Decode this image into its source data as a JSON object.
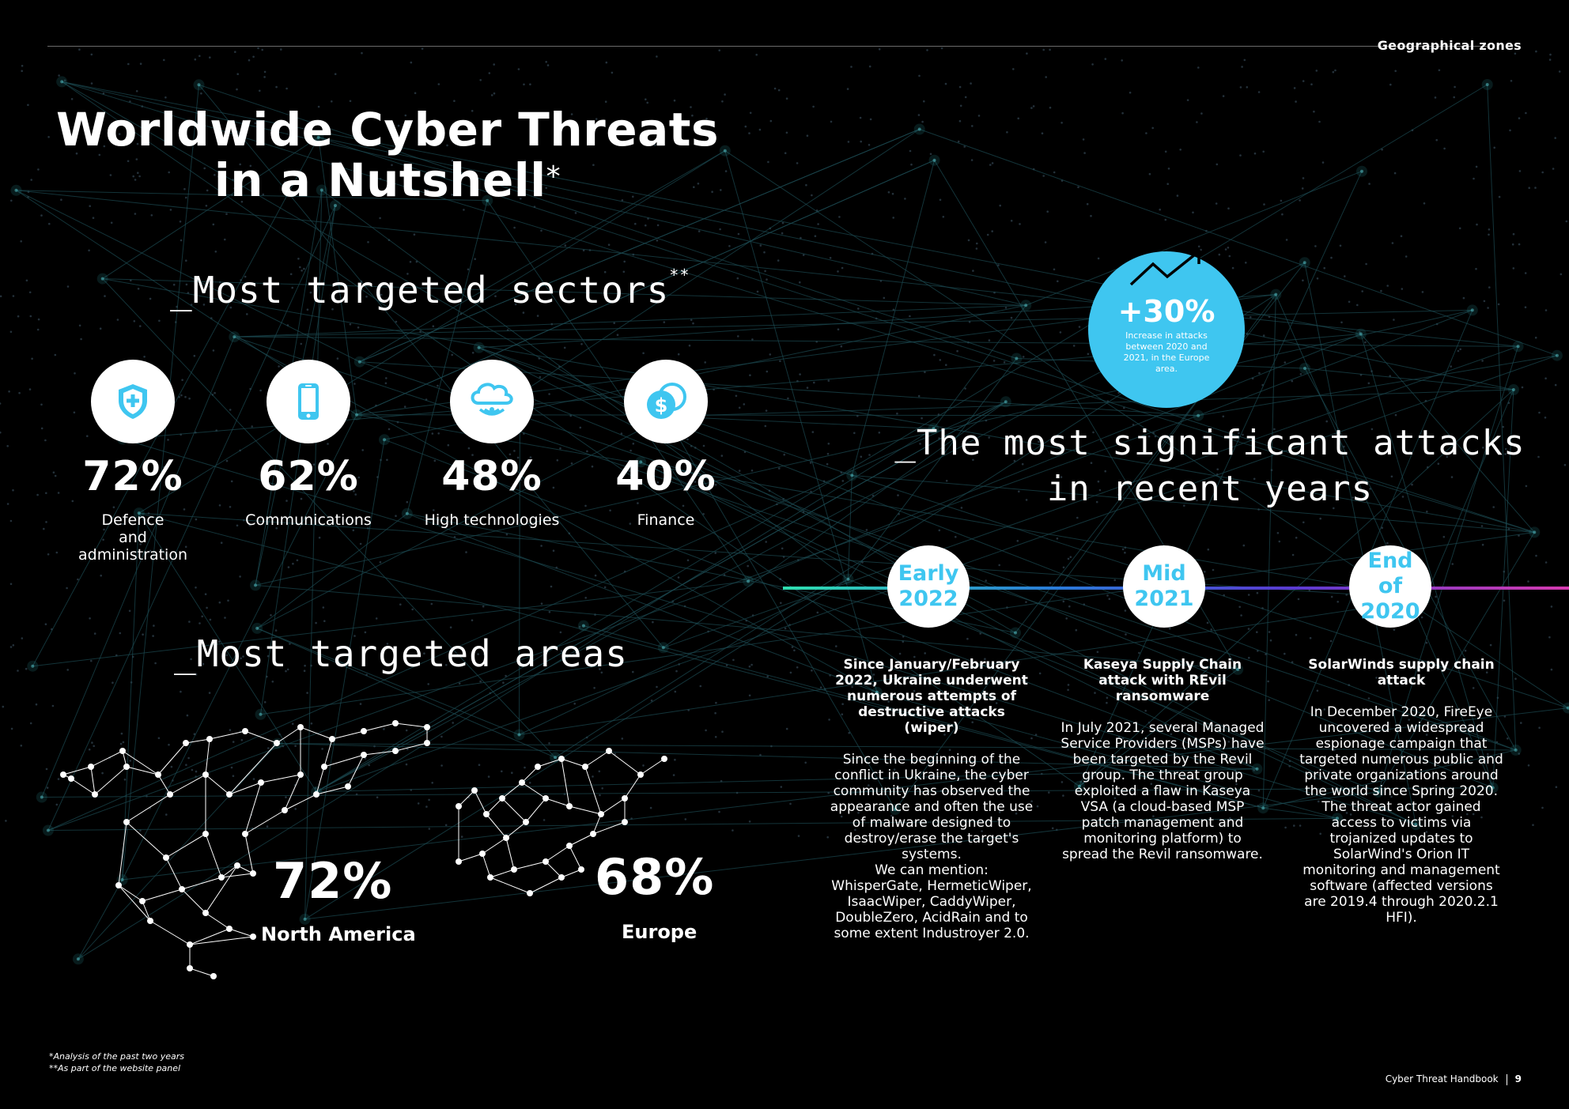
{
  "header": {
    "section": "Geographical zones"
  },
  "title": {
    "line1": "Worldwide Cyber Threats",
    "line2": "in a Nutshell",
    "mark": "*"
  },
  "sectors": {
    "heading": "_Most targeted sectors",
    "mark": "**",
    "items": [
      {
        "pct": "72%",
        "label": "Defence\nand\nadministration",
        "icon": "shield-plus-icon"
      },
      {
        "pct": "62%",
        "label": "Communications",
        "icon": "smartphone-icon"
      },
      {
        "pct": "48%",
        "label": "High technologies",
        "icon": "cloud-wireless-icon"
      },
      {
        "pct": "40%",
        "label": "Finance",
        "icon": "coins-dollar-icon"
      }
    ]
  },
  "areas": {
    "heading": "_Most targeted areas",
    "items": [
      {
        "pct": "72%",
        "label": "North America"
      },
      {
        "pct": "68%",
        "label": "Europe"
      }
    ]
  },
  "kpi": {
    "value": "+30%",
    "desc": "Increase in attacks between 2020 and 2021, in the Europe area.",
    "icon": "trend-up-arrow-icon"
  },
  "attacks": {
    "heading_line1": "_The most significant attacks",
    "heading_line2": "in recent years",
    "timeline": [
      {
        "line1": "Early",
        "line2": "2022"
      },
      {
        "line1": "Mid",
        "line2": "2021"
      },
      {
        "line1": "End",
        "line2": "of 2020"
      }
    ],
    "items": [
      {
        "title": "Since January/February 2022, Ukraine underwent numerous attempts of destructive attacks (wiper)",
        "body": "Since the beginning of the conflict in Ukraine, the cyber community has observed the appearance and often the use of malware designed to destroy/erase the target's systems.\nWe can mention: WhisperGate, HermeticWiper, IsaacWiper, CaddyWiper, DoubleZero, AcidRain and to some extent Industroyer 2.0."
      },
      {
        "title": "Kaseya Supply Chain attack with REvil ransomware",
        "body": "In July 2021, several Managed Service Providers (MSPs) have been targeted by the Revil group. The threat group exploited a flaw in Kaseya VSA (a cloud-based MSP patch management and monitoring platform) to spread the Revil ransomware."
      },
      {
        "title": "SolarWinds supply chain attack",
        "body": "In December 2020, FireEye uncovered a widespread espionage campaign that targeted numerous public and private organizations around the world since Spring 2020. The threat actor gained access to victims via trojanized updates to SolarWind's Orion IT monitoring and management software (affected versions are 2019.4 through 2020.2.1 HFI)."
      }
    ]
  },
  "footnotes": {
    "one": "*Analysis of the past two years",
    "two": "**As part of the website panel"
  },
  "footer": {
    "title": "Cyber Threat Handbook",
    "page": "9"
  },
  "colors": {
    "accent": "#3fc6f0",
    "background": "#000000",
    "text": "#ffffff"
  }
}
